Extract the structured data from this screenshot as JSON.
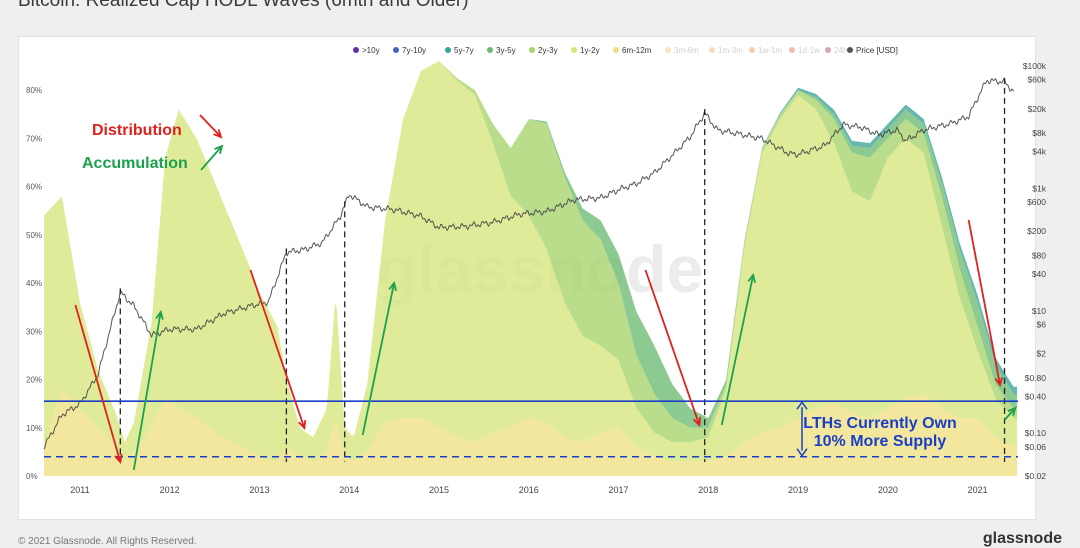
{
  "page": {
    "title": "Bitcoin: Realized Cap HODL Waves (6mth and Older)",
    "footer_left": "© 2021 Glassnode. All Rights Reserved.",
    "footer_right": "glassnode",
    "watermark": "glassnode"
  },
  "chart_data": {
    "type": "area",
    "title": "Bitcoin: Realized Cap HODL Waves (6mth and Older)",
    "x_ticks": [
      "2011",
      "2012",
      "2013",
      "2014",
      "2015",
      "2016",
      "2017",
      "2018",
      "2019",
      "2020",
      "2021"
    ],
    "xlim": [
      2010.6,
      2021.45
    ],
    "y_left_ticks": [
      "0%",
      "10%",
      "20%",
      "30%",
      "40%",
      "50%",
      "60%",
      "70%",
      "80%"
    ],
    "ylim_left": [
      0,
      85
    ],
    "y_right_ticks": [
      "$100k",
      "$60k",
      "$20k",
      "$8k",
      "$4k",
      "$1k",
      "$600",
      "$200",
      "$80",
      "$40",
      "$10",
      "$6",
      "$2",
      "$0.80",
      "$0.40",
      "$0.10",
      "$0.06",
      "$0.02"
    ],
    "y_right_log": true,
    "ylim_right": [
      0.02,
      100000
    ],
    "legend_position": "top",
    "legend": [
      {
        "label": ">10y",
        "color": "#5b2fb0",
        "active": true
      },
      {
        "label": "7y-10y",
        "color": "#3f63c9",
        "active": true
      },
      {
        "label": "5y-7y",
        "color": "#3aa39a",
        "active": true
      },
      {
        "label": "3y-5y",
        "color": "#6dbb72",
        "active": true
      },
      {
        "label": "2y-3y",
        "color": "#a6d46a",
        "active": true
      },
      {
        "label": "1y-2y",
        "color": "#d6e57c",
        "active": true
      },
      {
        "label": "6m-12m",
        "color": "#f0e083",
        "active": true
      },
      {
        "label": "3m-6m",
        "color": "#f3c45c",
        "active": false
      },
      {
        "label": "1m-3m",
        "color": "#f1a449",
        "active": false
      },
      {
        "label": "1w-1m",
        "color": "#e9803f",
        "active": false
      },
      {
        "label": "1d-1w",
        "color": "#d9533b",
        "active": false
      },
      {
        "label": "24h",
        "color": "#a21c4a",
        "active": false
      },
      {
        "label": "Price [USD]",
        "color": "#555555",
        "active": true
      }
    ],
    "series": [
      {
        "name": "6m-12m",
        "color": "#f0e083",
        "x": [
          2010.6,
          2010.8,
          2011.0,
          2011.2,
          2011.4,
          2011.5,
          2011.6,
          2011.8,
          2011.95,
          2012.1,
          2012.3,
          2012.5,
          2012.7,
          2012.9,
          2013.0,
          2013.2,
          2013.3,
          2013.45,
          2013.6,
          2013.75,
          2013.85,
          2013.95,
          2014.05,
          2014.2,
          2014.4,
          2014.6,
          2014.8,
          2015.0,
          2015.2,
          2015.4,
          2015.6,
          2015.8,
          2016.0,
          2016.2,
          2016.4,
          2016.6,
          2016.8,
          2017.0,
          2017.2,
          2017.4,
          2017.6,
          2017.8,
          2018.0,
          2018.2,
          2018.4,
          2018.6,
          2018.8,
          2019.0,
          2019.2,
          2019.4,
          2019.6,
          2019.8,
          2020.0,
          2020.2,
          2020.4,
          2020.6,
          2020.8,
          2021.0,
          2021.2,
          2021.4
        ],
        "values": [
          6,
          18,
          14,
          10,
          6,
          3,
          5,
          10,
          16,
          14,
          12,
          9,
          7,
          5,
          4,
          3,
          6,
          4,
          3,
          5,
          12,
          4,
          3,
          5,
          11,
          12,
          12,
          10,
          8,
          7,
          9,
          10,
          12,
          11,
          8,
          7,
          9,
          10,
          6,
          4,
          3,
          3,
          3,
          4,
          7,
          9,
          10,
          12,
          14,
          15,
          13,
          12,
          14,
          16,
          17,
          14,
          12,
          12,
          8,
          6
        ]
      },
      {
        "name": "1y-2y",
        "color": "#d6e57c",
        "x": [
          2010.6,
          2010.8,
          2011.0,
          2011.2,
          2011.4,
          2011.5,
          2011.6,
          2011.8,
          2011.95,
          2012.1,
          2012.3,
          2012.5,
          2012.7,
          2012.9,
          2013.0,
          2013.2,
          2013.3,
          2013.45,
          2013.6,
          2013.75,
          2013.85,
          2013.95,
          2014.05,
          2014.2,
          2014.4,
          2014.6,
          2014.8,
          2015.0,
          2015.2,
          2015.4,
          2015.6,
          2015.8,
          2016.0,
          2016.2,
          2016.4,
          2016.6,
          2016.8,
          2017.0,
          2017.2,
          2017.4,
          2017.6,
          2017.8,
          2018.0,
          2018.2,
          2018.4,
          2018.6,
          2018.8,
          2019.0,
          2019.2,
          2019.4,
          2019.6,
          2019.8,
          2020.0,
          2020.2,
          2020.4,
          2020.6,
          2020.8,
          2021.0,
          2021.2,
          2021.4
        ],
        "values": [
          48,
          40,
          22,
          12,
          7,
          4,
          6,
          22,
          50,
          62,
          58,
          52,
          45,
          38,
          34,
          28,
          14,
          6,
          5,
          9,
          26,
          6,
          5,
          14,
          42,
          62,
          72,
          76,
          74,
          72,
          60,
          48,
          42,
          36,
          28,
          22,
          18,
          14,
          8,
          5,
          4,
          4,
          5,
          14,
          40,
          58,
          64,
          67,
          62,
          54,
          46,
          45,
          52,
          54,
          50,
          38,
          25,
          14,
          8,
          6
        ]
      },
      {
        "name": "2y-3y",
        "color": "#a6d46a",
        "x": [
          2010.6,
          2013.0,
          2013.5,
          2014.0,
          2014.5,
          2015.0,
          2015.4,
          2015.6,
          2015.8,
          2016.0,
          2016.2,
          2016.4,
          2016.6,
          2016.8,
          2017.0,
          2017.2,
          2017.4,
          2017.6,
          2017.8,
          2018.0,
          2018.2,
          2018.4,
          2018.6,
          2018.8,
          2019.0,
          2019.2,
          2019.4,
          2019.6,
          2019.8,
          2020.0,
          2020.2,
          2020.4,
          2020.6,
          2020.8,
          2021.0,
          2021.2,
          2021.4
        ],
        "values": [
          0,
          0,
          0,
          0,
          0,
          0,
          1,
          4,
          10,
          20,
          26,
          26,
          24,
          22,
          16,
          11,
          8,
          5,
          3,
          2,
          1,
          1,
          1,
          1,
          1,
          2,
          5,
          8,
          9,
          4,
          4,
          4,
          6,
          6,
          5,
          3,
          2
        ]
      },
      {
        "name": "3y-5y",
        "color": "#6dbb72",
        "x": [
          2010.6,
          2014.5,
          2015.0,
          2015.5,
          2016.0,
          2016.4,
          2016.8,
          2017.0,
          2017.2,
          2017.4,
          2017.6,
          2017.8,
          2018.0,
          2018.2,
          2018.6,
          2019.0,
          2019.4,
          2019.8,
          2020.0,
          2020.2,
          2020.4,
          2020.6,
          2020.8,
          2021.0,
          2021.2,
          2021.4
        ],
        "values": [
          0,
          0,
          0,
          0,
          0,
          1,
          4,
          6,
          9,
          10,
          7,
          4,
          2,
          1,
          0,
          0,
          1,
          2,
          2,
          2,
          2,
          3,
          4,
          5,
          4,
          3
        ]
      },
      {
        "name": "5y-7y",
        "color": "#3aa39a",
        "x": [
          2010.6,
          2016.0,
          2017.0,
          2017.5,
          2018.0,
          2018.5,
          2019.0,
          2019.5,
          2020.0,
          2020.5,
          2021.0,
          2021.4
        ],
        "values": [
          0,
          0,
          0,
          0,
          0,
          0,
          0.5,
          1,
          1,
          1,
          1.5,
          1.5
        ]
      }
    ],
    "price_series": {
      "name": "Price [USD]",
      "color": "#444444",
      "x": [
        2010.6,
        2010.8,
        2011.0,
        2011.2,
        2011.45,
        2011.6,
        2011.8,
        2012.0,
        2012.3,
        2012.6,
        2012.9,
        2013.1,
        2013.3,
        2013.5,
        2013.7,
        2013.9,
        2014.0,
        2014.2,
        2014.5,
        2014.8,
        2015.0,
        2015.3,
        2015.6,
        2015.9,
        2016.2,
        2016.5,
        2016.8,
        2017.0,
        2017.2,
        2017.4,
        2017.6,
        2017.8,
        2017.96,
        2018.1,
        2018.3,
        2018.6,
        2018.9,
        2019.0,
        2019.3,
        2019.5,
        2019.7,
        2019.9,
        2020.1,
        2020.2,
        2020.4,
        2020.7,
        2020.9,
        2021.0,
        2021.1,
        2021.3,
        2021.4
      ],
      "values": [
        0.06,
        0.2,
        0.3,
        0.9,
        20,
        12,
        4,
        5,
        5,
        9,
        12,
        14,
        90,
        100,
        130,
        350,
        800,
        500,
        450,
        350,
        230,
        240,
        280,
        380,
        420,
        650,
        700,
        950,
        1200,
        1800,
        3500,
        7000,
        17000,
        9000,
        8000,
        6500,
        3700,
        3600,
        5000,
        11000,
        10000,
        7500,
        9000,
        6000,
        9000,
        11500,
        15000,
        30000,
        58000,
        55000,
        38000
      ]
    },
    "annotations": [
      {
        "text": "Distribution",
        "color": "#e0201c"
      },
      {
        "text": "Accumulation",
        "color": "#1aa24b"
      },
      {
        "text": "LTHs Currently Own",
        "color": "#1a3fc7"
      },
      {
        "text": "10% More Supply",
        "color": "#1a3fc7"
      }
    ],
    "reference_lines": [
      {
        "y": 15.5,
        "style": "solid",
        "color": "#1a3fc7"
      },
      {
        "y": 4,
        "style": "dashed",
        "color": "#1a3fc7"
      }
    ],
    "cycle_markers_x": [
      2011.45,
      2013.3,
      2013.95,
      2017.96,
      2021.3
    ],
    "distribution_arrows": [
      [
        2010.95,
        2011.45
      ],
      [
        2012.9,
        2013.5
      ],
      [
        2017.3,
        2017.9
      ],
      [
        2020.9,
        2021.25
      ]
    ],
    "accumulation_arrows": [
      [
        2011.6,
        2011.9
      ],
      [
        2014.15,
        2014.5
      ],
      [
        2018.15,
        2018.5
      ],
      [
        2021.3,
        2021.42
      ]
    ]
  }
}
